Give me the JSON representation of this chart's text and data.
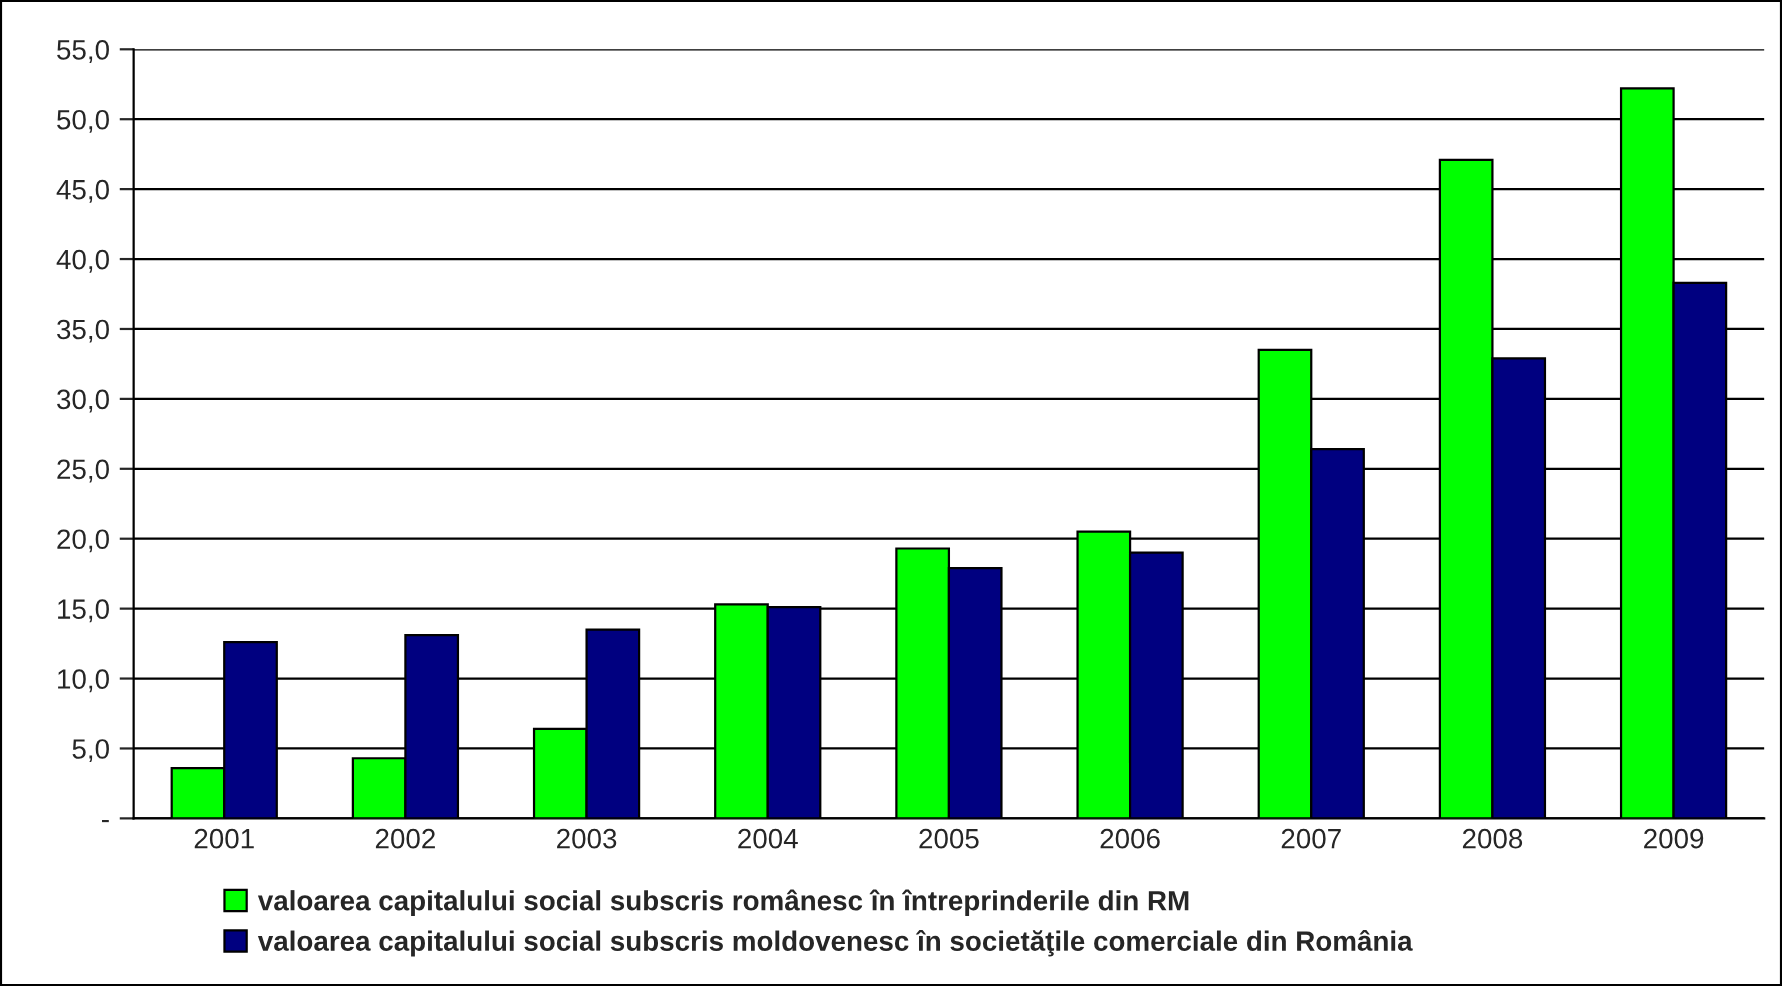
{
  "chart_data": {
    "type": "bar",
    "categories": [
      "2001",
      "2002",
      "2003",
      "2004",
      "2005",
      "2006",
      "2007",
      "2008",
      "2009"
    ],
    "series": [
      {
        "name": "valoarea capitalului social subscris românesc în întreprinderile din RM",
        "color": "#00ff00",
        "values": [
          3.6,
          4.3,
          6.4,
          15.3,
          19.3,
          20.5,
          33.5,
          47.1,
          52.2
        ]
      },
      {
        "name": "valoarea capitalului social subscris moldovenesc în societăţile comerciale din România",
        "color": "#000080",
        "values": [
          12.6,
          13.1,
          13.5,
          15.1,
          17.9,
          19.0,
          26.4,
          32.9,
          38.3
        ]
      }
    ],
    "ylim": [
      0,
      55
    ],
    "yticks": [
      {
        "value": 0,
        "label": "-"
      },
      {
        "value": 5,
        "label": "5,0"
      },
      {
        "value": 10,
        "label": "10,0"
      },
      {
        "value": 15,
        "label": "15,0"
      },
      {
        "value": 20,
        "label": "20,0"
      },
      {
        "value": 25,
        "label": "25,0"
      },
      {
        "value": 30,
        "label": "30,0"
      },
      {
        "value": 35,
        "label": "35,0"
      },
      {
        "value": 40,
        "label": "40,0"
      },
      {
        "value": 45,
        "label": "45,0"
      },
      {
        "value": 50,
        "label": "50,0"
      },
      {
        "value": 55,
        "label": "55,0"
      }
    ],
    "grid": "y",
    "legend": "bottom"
  }
}
